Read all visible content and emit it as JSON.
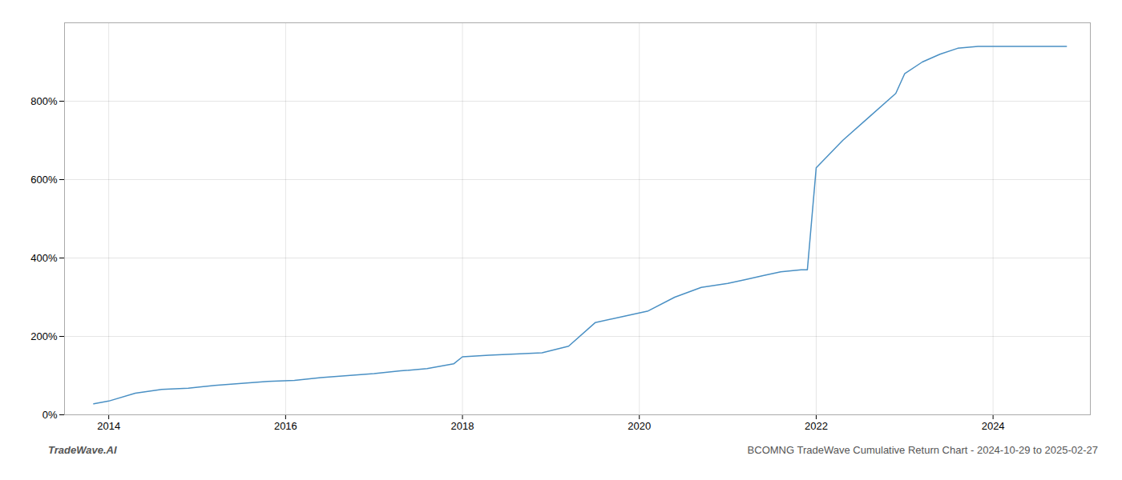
{
  "chart_data": {
    "type": "line",
    "x": [
      2013.83,
      2014.0,
      2014.3,
      2014.6,
      2014.9,
      2015.2,
      2015.5,
      2015.8,
      2016.1,
      2016.4,
      2016.7,
      2017.0,
      2017.3,
      2017.6,
      2017.9,
      2018.0,
      2018.3,
      2018.6,
      2018.9,
      2019.2,
      2019.5,
      2019.8,
      2020.1,
      2020.4,
      2020.7,
      2021.0,
      2021.2,
      2021.4,
      2021.6,
      2021.83,
      2021.9,
      2022.0,
      2022.3,
      2022.6,
      2022.9,
      2023.0,
      2023.2,
      2023.4,
      2023.6,
      2023.83,
      2024.0,
      2024.5,
      2024.83
    ],
    "values": [
      28,
      35,
      55,
      65,
      68,
      75,
      80,
      85,
      88,
      95,
      100,
      105,
      112,
      118,
      130,
      148,
      152,
      155,
      158,
      175,
      235,
      250,
      265,
      300,
      325,
      335,
      345,
      355,
      365,
      370,
      370,
      630,
      700,
      760,
      820,
      870,
      900,
      920,
      935,
      940,
      940,
      940,
      940
    ],
    "color": "#4a90c4",
    "xlim": [
      2013.5,
      2025.1
    ],
    "xticks": [
      2014,
      2016,
      2018,
      2020,
      2022,
      2024
    ],
    "ylim": [
      0,
      1000
    ],
    "yticks": [
      {
        "value": 0,
        "label": "0%"
      },
      {
        "value": 200,
        "label": "200%"
      },
      {
        "value": 400,
        "label": "400%"
      },
      {
        "value": 600,
        "label": "600%"
      },
      {
        "value": 800,
        "label": "800%"
      }
    ],
    "grid": true,
    "annotations": [
      "TradeWave.AI",
      "BCOMNG TradeWave Cumulative Return Chart - 2024-10-29 to 2025-02-27"
    ]
  }
}
